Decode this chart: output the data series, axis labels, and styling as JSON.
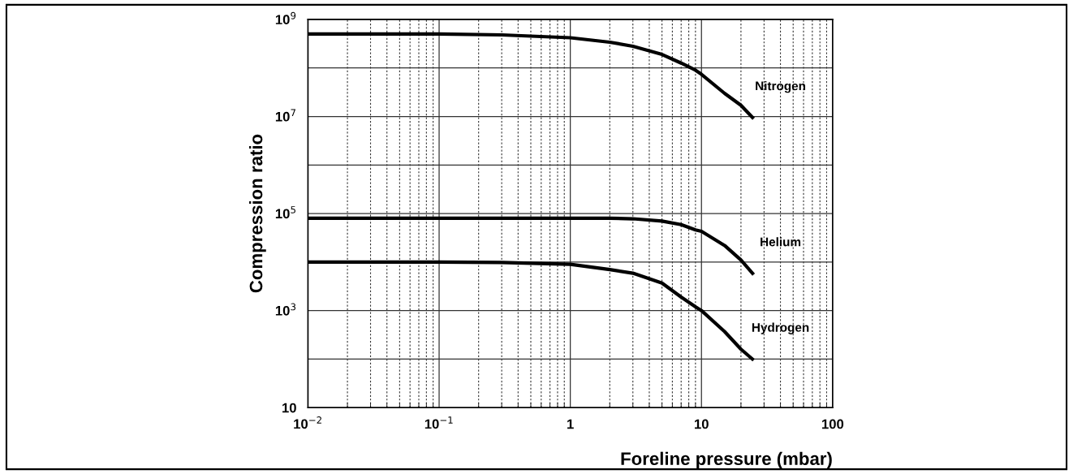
{
  "chart_data": {
    "type": "line",
    "xlabel": "Foreline pressure (mbar)",
    "ylabel": "Compression ratio",
    "log": "xy",
    "grid": true,
    "legend": false,
    "marker": "none",
    "line_style": "solid",
    "xlim": [
      0.01,
      100
    ],
    "ylim": [
      10,
      1000000000
    ],
    "xticks": [
      {
        "value": 0.01,
        "label": "10$^{−2}$"
      },
      {
        "value": 0.1,
        "label": "10$^{−1}$"
      },
      1,
      10,
      100
    ],
    "yticks": [
      10,
      {
        "value": 1000,
        "label": "10$^{3}$"
      },
      {
        "value": 100000,
        "label": "10$^{5}$"
      },
      {
        "value": 10000000,
        "label": "10$^{7}$"
      },
      {
        "value": 1000000000,
        "label": "10$^{9}$"
      }
    ],
    "x": [
      0.01,
      0.1,
      0.3,
      1,
      2,
      3,
      5,
      7,
      9,
      10,
      15,
      20,
      25
    ],
    "series": [
      {
        "name": "Nitrogen",
        "color": "#000000",
        "values": [
          500000000,
          500000000,
          480000000,
          420000000,
          340000000,
          280000000,
          190000000,
          126000000,
          90000000,
          74000000,
          30000000,
          17000000,
          9000000
        ]
      },
      {
        "name": "Helium",
        "color": "#000000",
        "values": [
          80000,
          80000,
          80000,
          80000,
          80000,
          78000,
          70000,
          59000,
          46000,
          43000,
          22000,
          11000,
          5500
        ]
      },
      {
        "name": "Hydrogen",
        "color": "#000000",
        "values": [
          10000,
          10000,
          9800,
          9000,
          7000,
          5900,
          3700,
          1900,
          1200,
          1000,
          370,
          160,
          95
        ]
      }
    ]
  }
}
